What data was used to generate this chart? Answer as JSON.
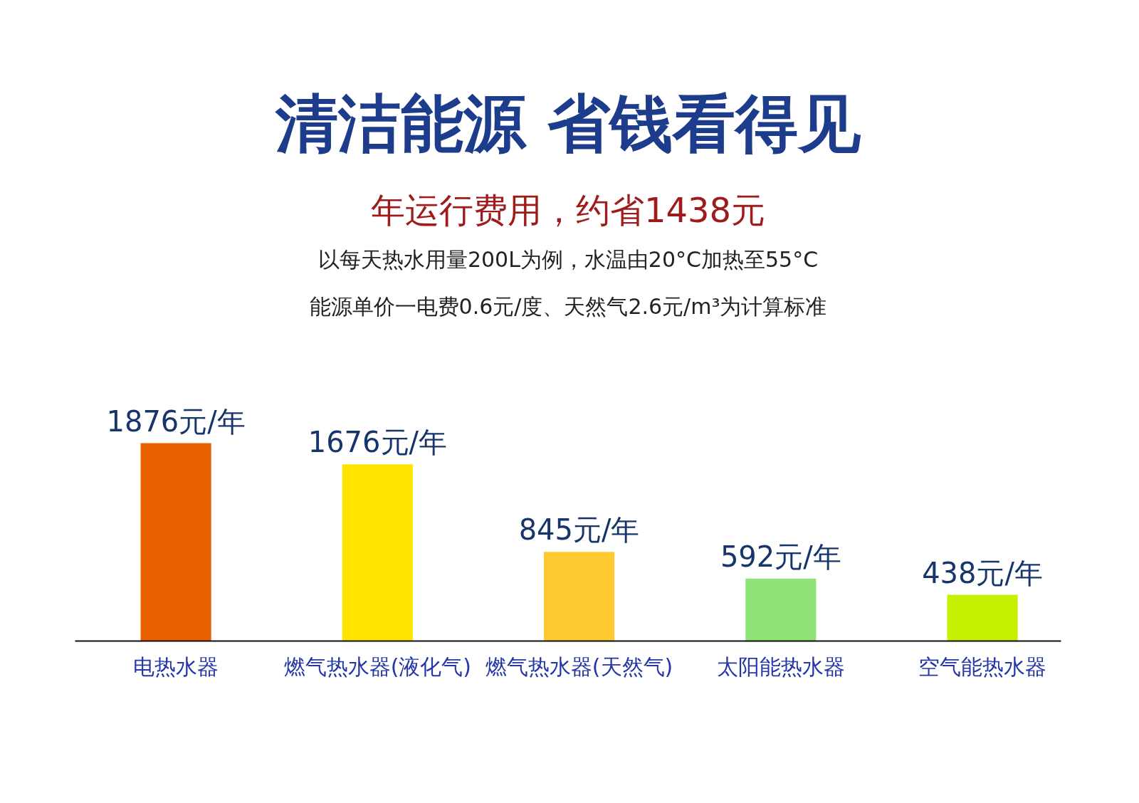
{
  "chart_data": {
    "type": "bar",
    "title": "清洁能源 省钱看得见",
    "subtitle": "年运行费用，约省1438元",
    "annotations": [
      "以每天热水用量200L为例，水温由20°C加热至55°C",
      "能源单价一电费0.6元/度、天然气2.6元/m³为计算标准"
    ],
    "categories": [
      "电热水器",
      "燃气热水器(液化气)",
      "燃气热水器(天然气)",
      "太阳能热水器",
      "空气能热水器"
    ],
    "values": [
      1876,
      1676,
      845,
      592,
      438
    ],
    "colors": [
      "#e86100",
      "#ffe400",
      "#ffca30",
      "#8ee276",
      "#c5f000"
    ],
    "value_labels": [
      "1876元/年",
      "1676元/年",
      "845元/年",
      "592元/年",
      "438元/年"
    ]
  }
}
